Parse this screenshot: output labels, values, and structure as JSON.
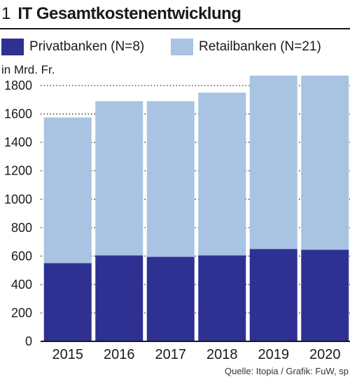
{
  "figure_number": "1",
  "title": "IT Gesamtkostenentwicklung",
  "unit_label": "in Mrd. Fr.",
  "source": "Quelle: Itopia / Grafik: FuW, sp",
  "colors": {
    "privatbanken": "#2e3192",
    "retailbanken": "#a9c4e2",
    "text": "#1a1a1a"
  },
  "chart_data": {
    "type": "bar",
    "stacked": true,
    "title": "IT Gesamtkostenentwicklung",
    "ylabel": "in Mrd. Fr.",
    "categories": [
      "2015",
      "2016",
      "2017",
      "2018",
      "2019",
      "2020"
    ],
    "series": [
      {
        "name": "Privatbanken (N=8)",
        "values": [
          550,
          605,
          595,
          605,
          650,
          645
        ]
      },
      {
        "name": "Retailbanken (N=21)",
        "values": [
          1025,
          1085,
          1095,
          1145,
          1220,
          1225
        ]
      }
    ],
    "totals": [
      1575,
      1690,
      1690,
      1750,
      1870,
      1870
    ],
    "ylim": [
      0,
      1900
    ],
    "yticks": [
      0,
      200,
      400,
      600,
      800,
      1000,
      1200,
      1400,
      1600,
      1800
    ],
    "grid": "dotted horizontal",
    "legend_position": "top"
  }
}
